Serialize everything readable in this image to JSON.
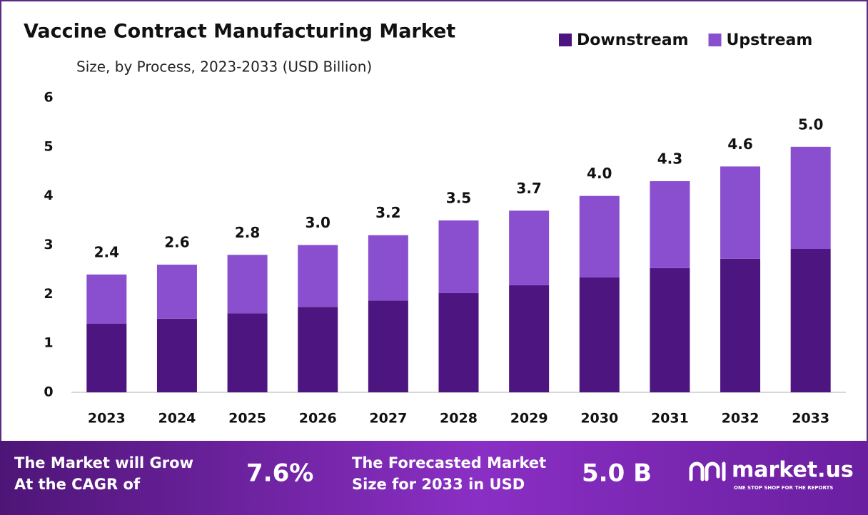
{
  "chart_data": {
    "type": "stacked-bar",
    "title": "Vaccine Contract Manufacturing Market",
    "subtitle": "Size, by Process, 2023-2033 (USD Billion)",
    "categories": [
      "2023",
      "2024",
      "2025",
      "2026",
      "2027",
      "2028",
      "2029",
      "2030",
      "2031",
      "2032",
      "2033"
    ],
    "series": [
      {
        "name": "Downstream",
        "color": "#4d1580",
        "values": [
          1.4,
          1.5,
          1.61,
          1.74,
          1.87,
          2.02,
          2.18,
          2.34,
          2.53,
          2.72,
          2.92
        ]
      },
      {
        "name": "Upstream",
        "color": "#8a4fcf",
        "values": [
          1.0,
          1.1,
          1.19,
          1.26,
          1.33,
          1.48,
          1.52,
          1.66,
          1.77,
          1.88,
          2.08
        ]
      }
    ],
    "totals": {
      "values": [
        2.4,
        2.6,
        2.8,
        3.0,
        3.2,
        3.5,
        3.7,
        4.0,
        4.3,
        4.6,
        5.0
      ],
      "value_labels": [
        "2.4",
        "2.6",
        "2.8",
        "3.0",
        "3.2",
        "3.5",
        "3.7",
        "4.0",
        "4.3",
        "4.6",
        "5.0"
      ]
    },
    "ylim": [
      0,
      6
    ],
    "yticks": [
      0,
      1,
      2,
      3,
      4,
      5,
      6
    ],
    "grid": false
  },
  "footer": {
    "cagr_text": [
      "The Market will Grow",
      "At the CAGR of"
    ],
    "cagr_value": "7.6%",
    "forecast_text": [
      "The Forecasted Market",
      "Size for 2033 in USD"
    ],
    "forecast_value": "5.0 B",
    "brand": "market.us",
    "tagline": "ONE STOP SHOP FOR THE REPORTS"
  }
}
